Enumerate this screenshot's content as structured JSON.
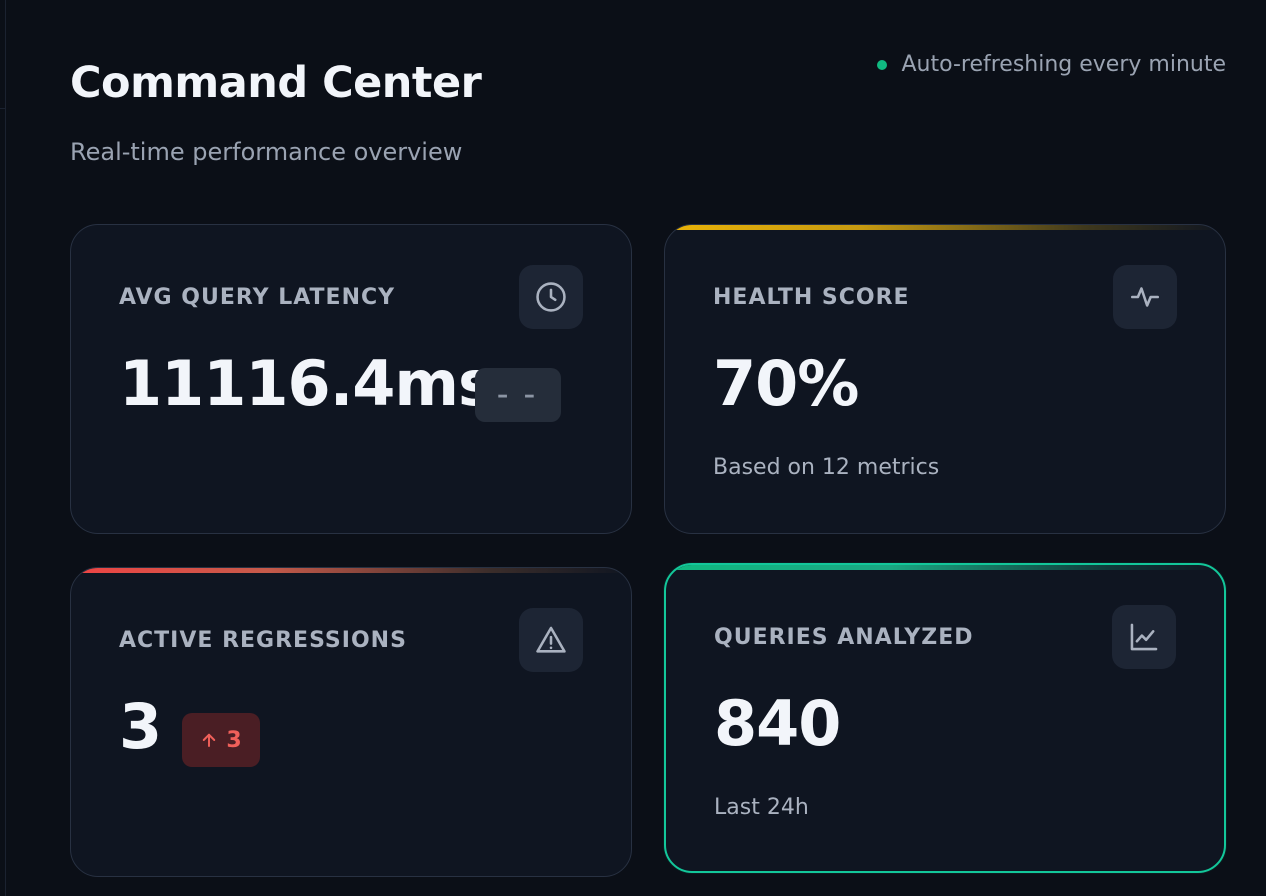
{
  "header": {
    "title": "Command Center",
    "subtitle": "Real-time performance overview",
    "refresh_text": "Auto-refreshing every minute"
  },
  "colors": {
    "live_dot": "#10b981",
    "health_accent": "#eab308",
    "regression_accent": "#ef4444",
    "queries_accent": "#10b981",
    "danger_badge_text": "#f0605a"
  },
  "cards": {
    "latency": {
      "label": "AVG QUERY LATENCY",
      "value": "11116.4ms",
      "trend": "– –",
      "icon": "clock-icon"
    },
    "health": {
      "label": "HEALTH SCORE",
      "value": "70%",
      "sub": "Based on 12 metrics",
      "icon": "activity-icon"
    },
    "regressions": {
      "label": "ACTIVE REGRESSIONS",
      "value": "3",
      "trend_value": "3",
      "trend_icon": "arrow-up-icon",
      "icon": "warning-icon"
    },
    "queries": {
      "label": "QUERIES ANALYZED",
      "value": "840",
      "sub": "Last 24h",
      "icon": "chart-line-icon"
    }
  }
}
